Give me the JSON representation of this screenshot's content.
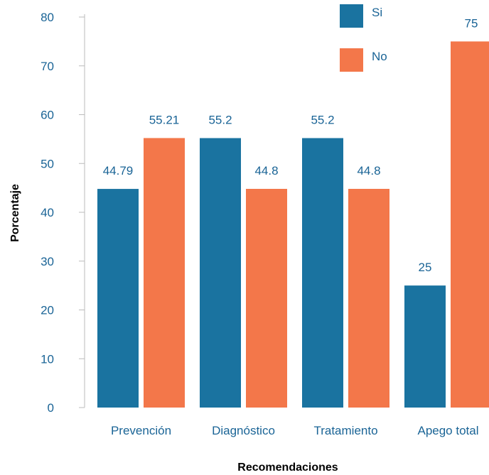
{
  "chart_data": {
    "type": "bar",
    "title": "",
    "xlabel": "Recomendaciones",
    "ylabel": "Porcentaje",
    "categories": [
      "Prevención",
      "Diagnóstico",
      "Tratamiento",
      "Apego total"
    ],
    "series": [
      {
        "name": "Si",
        "values": [
          44.79,
          55.2,
          55.2,
          25
        ],
        "labels": [
          "44.79",
          "55.2",
          "55.2",
          "25"
        ],
        "color": "#1a73a0"
      },
      {
        "name": "No",
        "values": [
          55.21,
          44.8,
          44.8,
          75
        ],
        "labels": [
          "55.21",
          "44.8",
          "44.8",
          "75"
        ],
        "color": "#f3774a"
      }
    ],
    "ylim": [
      0,
      80
    ],
    "yticks": [
      "0",
      "10",
      "20",
      "30",
      "40",
      "50",
      "60",
      "70",
      "80"
    ],
    "grid": false,
    "legend_position": "top-right",
    "text_color": "#1a6496",
    "axis_color": "#bbbbbb"
  }
}
